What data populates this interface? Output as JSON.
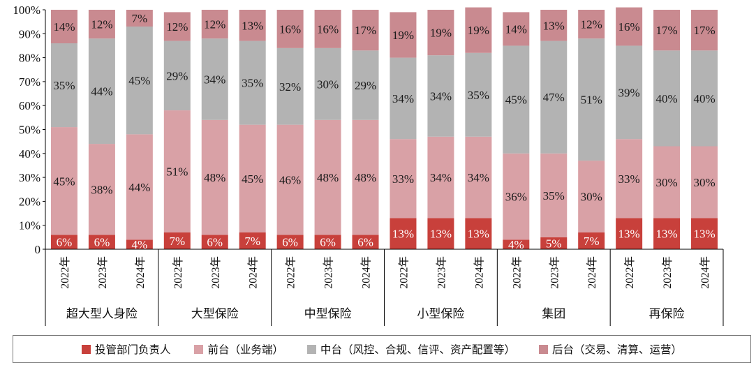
{
  "chart_data": {
    "type": "bar",
    "stacked": true,
    "percent": true,
    "groups": [
      {
        "name": "超大型人身险",
        "years": [
          "2022年",
          "2023年",
          "2024年"
        ]
      },
      {
        "name": "大型保险",
        "years": [
          "2022年",
          "2023年",
          "2024年"
        ]
      },
      {
        "name": "中型保险",
        "years": [
          "2022年",
          "2023年",
          "2024年"
        ]
      },
      {
        "name": "小型保险",
        "years": [
          "2022年",
          "2023年",
          "2024年"
        ]
      },
      {
        "name": "集团",
        "years": [
          "2022年",
          "2023年",
          "2024年"
        ]
      },
      {
        "name": "再保险",
        "years": [
          "2022年",
          "2023年",
          "2024年"
        ]
      }
    ],
    "series": [
      {
        "name": "投管部门负责人",
        "color": "#c8403b",
        "values": [
          6,
          6,
          4,
          7,
          6,
          7,
          6,
          6,
          6,
          13,
          13,
          13,
          4,
          5,
          7,
          13,
          13,
          13
        ]
      },
      {
        "name": "前台（业务端）",
        "color": "#d9a1a6",
        "values": [
          45,
          38,
          44,
          51,
          48,
          45,
          46,
          48,
          48,
          33,
          34,
          34,
          36,
          35,
          30,
          33,
          30,
          30
        ]
      },
      {
        "name": "中台（风控、合规、信评、资产配置等）",
        "color": "#b3b3b3",
        "values": [
          35,
          44,
          45,
          29,
          34,
          35,
          32,
          30,
          29,
          34,
          34,
          35,
          45,
          47,
          51,
          39,
          40,
          40
        ]
      },
      {
        "name": "后台（交易、清算、运营）",
        "color": "#c98a90",
        "values": [
          14,
          12,
          7,
          12,
          12,
          13,
          16,
          16,
          17,
          19,
          19,
          19,
          14,
          13,
          12,
          16,
          17,
          17
        ]
      }
    ],
    "y_ticks": [
      "0",
      "10%",
      "20%",
      "30%",
      "40%",
      "50%",
      "60%",
      "70%",
      "80%",
      "90%",
      "100%"
    ],
    "ylim": [
      0,
      100
    ],
    "legend_position": "bottom"
  }
}
